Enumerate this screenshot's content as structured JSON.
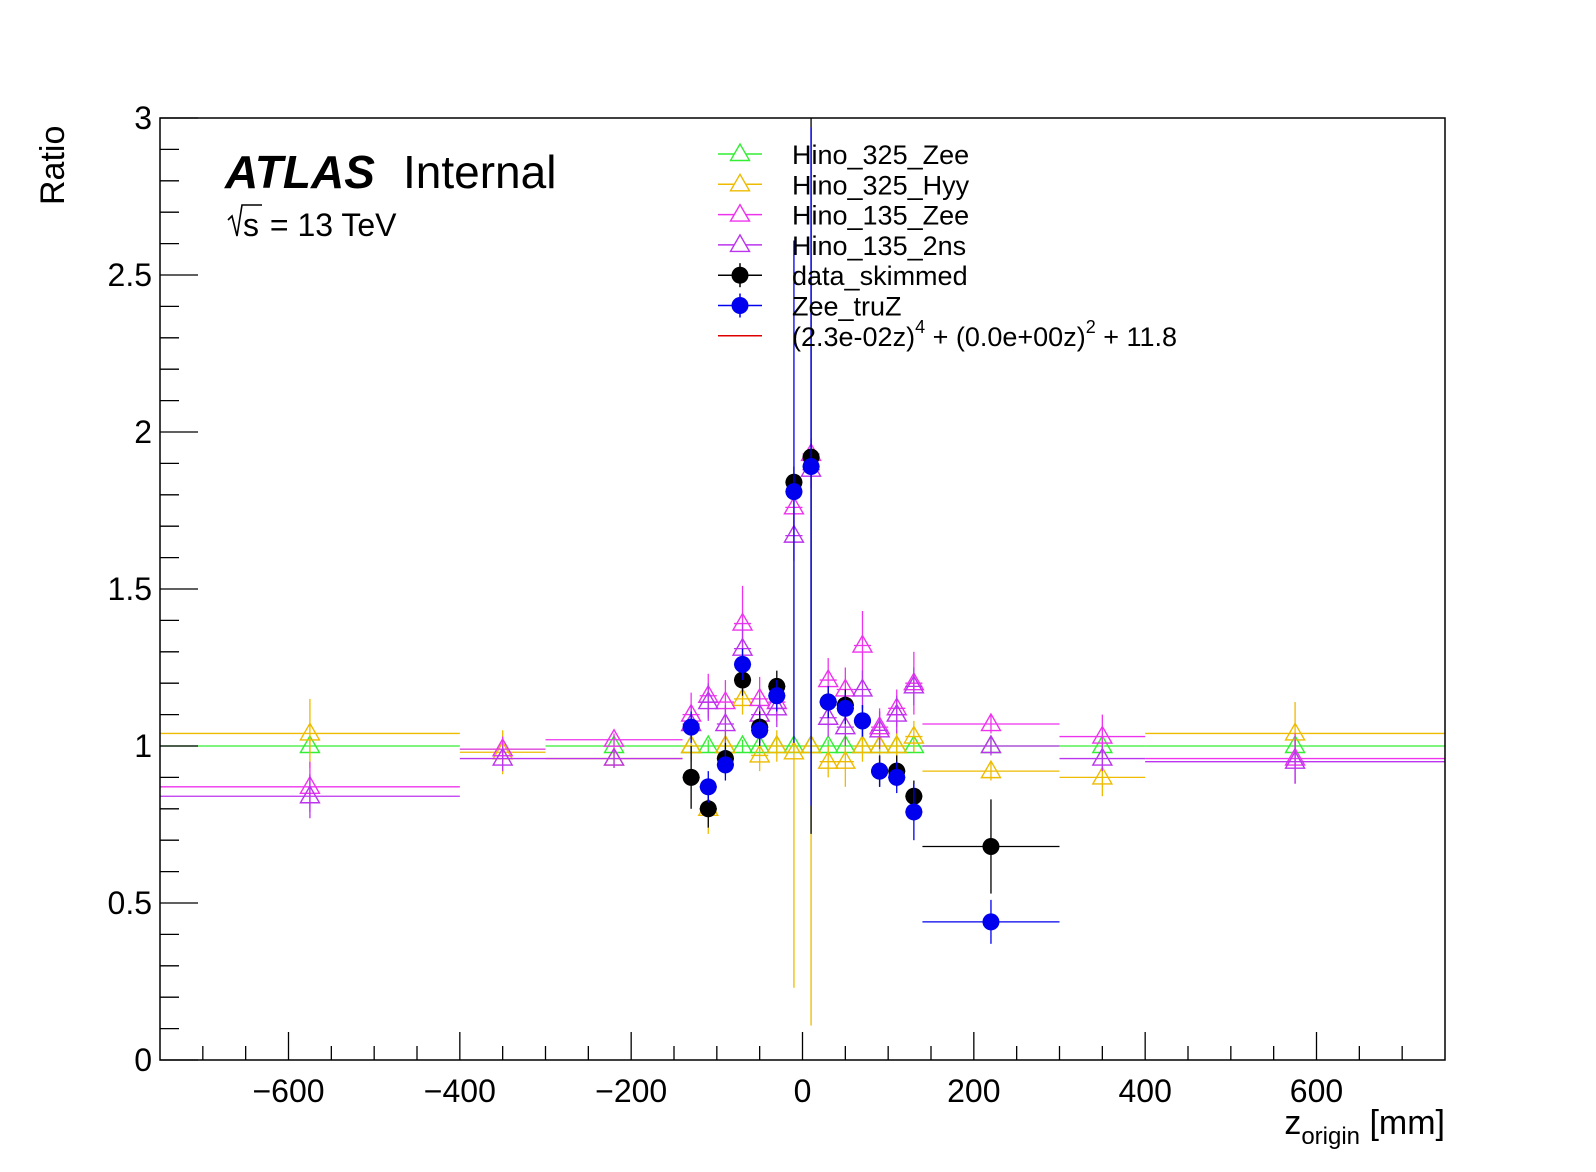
{
  "chart_data": {
    "type": "scatter",
    "title": "",
    "xlabel": "z",
    "xlabel_sub": "origin",
    "xlabel_unit": " [mm]",
    "ylabel": "Ratio",
    "xlim": [
      -750,
      750
    ],
    "ylim": [
      0,
      3
    ],
    "x_ticks": [
      -600,
      -400,
      -200,
      0,
      200,
      400,
      600
    ],
    "x_tick_labels": [
      "−600",
      "−400",
      "−200",
      "0",
      "200",
      "400",
      "600"
    ],
    "y_ticks": [
      0,
      0.5,
      1,
      1.5,
      2,
      2.5,
      3
    ],
    "y_tick_labels": [
      "0",
      "0.5",
      "1",
      "1.5",
      "2",
      "2.5",
      "3"
    ],
    "grid": false,
    "legend_position": "top-center",
    "atlas_label": {
      "bold": "ATLAS",
      "text": "Internal",
      "energy_prefix": "s",
      "energy": " = 13 TeV"
    },
    "series": [
      {
        "name": "Hino_325_Zee",
        "color": "#33ee33",
        "marker": "open-triangle",
        "points": [
          {
            "x": -575,
            "xlo": -750,
            "xhi": -400,
            "y": 1.0,
            "err": 0.02
          },
          {
            "x": -350,
            "xlo": -400,
            "xhi": -300,
            "y": 0.99,
            "err": 0.02
          },
          {
            "x": -220,
            "xlo": -300,
            "xhi": -140,
            "y": 1.0,
            "err": 0.02
          },
          {
            "x": -130,
            "xlo": -140,
            "xhi": -120,
            "y": 1.0,
            "err": 0.02
          },
          {
            "x": -110,
            "xlo": -120,
            "xhi": -100,
            "y": 1.0,
            "err": 0.02
          },
          {
            "x": -90,
            "xlo": -100,
            "xhi": -80,
            "y": 1.0,
            "err": 0.02
          },
          {
            "x": -70,
            "xlo": -80,
            "xhi": -60,
            "y": 1.0,
            "err": 0.02
          },
          {
            "x": -50,
            "xlo": -60,
            "xhi": -40,
            "y": 1.0,
            "err": 0.02
          },
          {
            "x": -30,
            "xlo": -40,
            "xhi": -20,
            "y": 1.0,
            "err": 0.02
          },
          {
            "x": -10,
            "xlo": -20,
            "xhi": 0,
            "y": 1.0,
            "err": 0.02
          },
          {
            "x": 10,
            "xlo": 0,
            "xhi": 20,
            "y": 1.0,
            "err": 0.02
          },
          {
            "x": 30,
            "xlo": 20,
            "xhi": 40,
            "y": 1.0,
            "err": 0.02
          },
          {
            "x": 50,
            "xlo": 40,
            "xhi": 60,
            "y": 1.0,
            "err": 0.02
          },
          {
            "x": 70,
            "xlo": 60,
            "xhi": 80,
            "y": 1.0,
            "err": 0.02
          },
          {
            "x": 90,
            "xlo": 80,
            "xhi": 100,
            "y": 1.0,
            "err": 0.02
          },
          {
            "x": 110,
            "xlo": 100,
            "xhi": 120,
            "y": 1.0,
            "err": 0.02
          },
          {
            "x": 130,
            "xlo": 120,
            "xhi": 140,
            "y": 1.0,
            "err": 0.02
          },
          {
            "x": 220,
            "xlo": 140,
            "xhi": 300,
            "y": 1.0,
            "err": 0.02
          },
          {
            "x": 350,
            "xlo": 300,
            "xhi": 400,
            "y": 1.0,
            "err": 0.02
          },
          {
            "x": 575,
            "xlo": 400,
            "xhi": 750,
            "y": 1.0,
            "err": 0.02
          }
        ]
      },
      {
        "name": "Hino_325_Hyy",
        "color": "#eebb00",
        "marker": "open-triangle",
        "points": [
          {
            "x": -575,
            "xlo": -750,
            "xhi": -400,
            "y": 1.04,
            "err": 0.11
          },
          {
            "x": -350,
            "xlo": -400,
            "xhi": -300,
            "y": 0.98,
            "err": 0.07
          },
          {
            "x": -220,
            "xlo": -300,
            "xhi": -140,
            "y": 0.96,
            "err": 0.03
          },
          {
            "x": -130,
            "xlo": -140,
            "xhi": -120,
            "y": 1.0,
            "err": 0.05
          },
          {
            "x": -110,
            "xlo": -120,
            "xhi": -100,
            "y": 0.8,
            "err": 0.08
          },
          {
            "x": -90,
            "xlo": -100,
            "xhi": -80,
            "y": 1.0,
            "err": 0.05
          },
          {
            "x": -70,
            "xlo": -80,
            "xhi": -60,
            "y": 1.15,
            "err": 0.05
          },
          {
            "x": -50,
            "xlo": -60,
            "xhi": -40,
            "y": 0.97,
            "err": 0.05
          },
          {
            "x": -30,
            "xlo": -40,
            "xhi": -20,
            "y": 1.0,
            "err": 0.05
          },
          {
            "x": -10,
            "xlo": -20,
            "xhi": 0,
            "y": 0.98,
            "err": 0.75
          },
          {
            "x": 10,
            "xlo": 0,
            "xhi": 20,
            "y": 1.0,
            "err": 0.89
          },
          {
            "x": 30,
            "xlo": 20,
            "xhi": 40,
            "y": 0.95,
            "err": 0.05
          },
          {
            "x": 50,
            "xlo": 40,
            "xhi": 60,
            "y": 0.95,
            "err": 0.08
          },
          {
            "x": 70,
            "xlo": 60,
            "xhi": 80,
            "y": 1.0,
            "err": 0.05
          },
          {
            "x": 90,
            "xlo": 80,
            "xhi": 100,
            "y": 1.0,
            "err": 0.05
          },
          {
            "x": 110,
            "xlo": 100,
            "xhi": 120,
            "y": 1.0,
            "err": 0.05
          },
          {
            "x": 130,
            "xlo": 120,
            "xhi": 140,
            "y": 1.03,
            "err": 0.05
          },
          {
            "x": 220,
            "xlo": 140,
            "xhi": 300,
            "y": 0.92,
            "err": 0.03
          },
          {
            "x": 350,
            "xlo": 300,
            "xhi": 400,
            "y": 0.9,
            "err": 0.06
          },
          {
            "x": 575,
            "xlo": 400,
            "xhi": 750,
            "y": 1.04,
            "err": 0.1
          }
        ]
      },
      {
        "name": "Hino_135_Zee",
        "color": "#ee33ee",
        "marker": "open-triangle",
        "points": [
          {
            "x": -575,
            "xlo": -750,
            "xhi": -400,
            "y": 0.87,
            "err": 0.08
          },
          {
            "x": -350,
            "xlo": -400,
            "xhi": -300,
            "y": 0.99,
            "err": 0.04
          },
          {
            "x": -220,
            "xlo": -300,
            "xhi": -140,
            "y": 1.02,
            "err": 0.02
          },
          {
            "x": -130,
            "xlo": -140,
            "xhi": -120,
            "y": 1.1,
            "err": 0.07
          },
          {
            "x": -110,
            "xlo": -120,
            "xhi": -100,
            "y": 1.16,
            "err": 0.07
          },
          {
            "x": -90,
            "xlo": -100,
            "xhi": -80,
            "y": 1.14,
            "err": 0.07
          },
          {
            "x": -70,
            "xlo": -80,
            "xhi": -60,
            "y": 1.39,
            "err": 0.12
          },
          {
            "x": -50,
            "xlo": -60,
            "xhi": -40,
            "y": 1.15,
            "err": 0.07
          },
          {
            "x": -30,
            "xlo": -40,
            "xhi": -20,
            "y": 1.14,
            "err": 0.06
          },
          {
            "x": -10,
            "xlo": -20,
            "xhi": 0,
            "y": 1.76,
            "err": 0.06
          },
          {
            "x": 10,
            "xlo": 0,
            "xhi": 20,
            "y": 1.93,
            "err": 0.05
          },
          {
            "x": 30,
            "xlo": 20,
            "xhi": 40,
            "y": 1.21,
            "err": 0.07
          },
          {
            "x": 50,
            "xlo": 40,
            "xhi": 60,
            "y": 1.18,
            "err": 0.07
          },
          {
            "x": 70,
            "xlo": 60,
            "xhi": 80,
            "y": 1.32,
            "err": 0.11
          },
          {
            "x": 90,
            "xlo": 80,
            "xhi": 100,
            "y": 1.06,
            "err": 0.06
          },
          {
            "x": 110,
            "xlo": 100,
            "xhi": 120,
            "y": 1.12,
            "err": 0.06
          },
          {
            "x": 130,
            "xlo": 120,
            "xhi": 140,
            "y": 1.2,
            "err": 0.1
          },
          {
            "x": 220,
            "xlo": 140,
            "xhi": 300,
            "y": 1.07,
            "err": 0.03
          },
          {
            "x": 350,
            "xlo": 300,
            "xhi": 400,
            "y": 1.03,
            "err": 0.07
          },
          {
            "x": 575,
            "xlo": 400,
            "xhi": 750,
            "y": 0.96,
            "err": 0.08
          }
        ]
      },
      {
        "name": "Hino_135_2ns",
        "color": "#bb33ee",
        "marker": "open-triangle",
        "points": [
          {
            "x": -575,
            "xlo": -750,
            "xhi": -400,
            "y": 0.84,
            "err": 0.07
          },
          {
            "x": -350,
            "xlo": -400,
            "xhi": -300,
            "y": 0.96,
            "err": 0.04
          },
          {
            "x": -220,
            "xlo": -300,
            "xhi": -140,
            "y": 0.96,
            "err": 0.03
          },
          {
            "x": -130,
            "xlo": -140,
            "xhi": -120,
            "y": 1.07,
            "err": 0.06
          },
          {
            "x": -110,
            "xlo": -120,
            "xhi": -100,
            "y": 1.14,
            "err": 0.06
          },
          {
            "x": -90,
            "xlo": -100,
            "xhi": -80,
            "y": 1.07,
            "err": 0.06
          },
          {
            "x": -70,
            "xlo": -80,
            "xhi": -60,
            "y": 1.31,
            "err": 0.08
          },
          {
            "x": -50,
            "xlo": -60,
            "xhi": -40,
            "y": 1.1,
            "err": 0.06
          },
          {
            "x": -30,
            "xlo": -40,
            "xhi": -20,
            "y": 1.12,
            "err": 0.06
          },
          {
            "x": -10,
            "xlo": -20,
            "xhi": 0,
            "y": 1.67,
            "err": 0.08
          },
          {
            "x": 10,
            "xlo": 0,
            "xhi": 20,
            "y": 1.88,
            "err": 0.06
          },
          {
            "x": 30,
            "xlo": 20,
            "xhi": 40,
            "y": 1.09,
            "err": 0.06
          },
          {
            "x": 50,
            "xlo": 40,
            "xhi": 60,
            "y": 1.06,
            "err": 0.06
          },
          {
            "x": 70,
            "xlo": 60,
            "xhi": 80,
            "y": 1.18,
            "err": 0.06
          },
          {
            "x": 90,
            "xlo": 80,
            "xhi": 100,
            "y": 1.05,
            "err": 0.06
          },
          {
            "x": 110,
            "xlo": 100,
            "xhi": 120,
            "y": 1.1,
            "err": 0.06
          },
          {
            "x": 130,
            "xlo": 120,
            "xhi": 140,
            "y": 1.19,
            "err": 0.06
          },
          {
            "x": 220,
            "xlo": 140,
            "xhi": 300,
            "y": 1.0,
            "err": 0.03
          },
          {
            "x": 350,
            "xlo": 300,
            "xhi": 400,
            "y": 0.96,
            "err": 0.04
          },
          {
            "x": 575,
            "xlo": 400,
            "xhi": 750,
            "y": 0.95,
            "err": 0.07
          }
        ]
      },
      {
        "name": "data_skimmed",
        "color": "#000000",
        "marker": "filled-circle",
        "points": [
          {
            "x": -130,
            "xlo": -140,
            "xhi": -120,
            "y": 0.9,
            "err": 0.1
          },
          {
            "x": -110,
            "xlo": -120,
            "xhi": -100,
            "y": 0.8,
            "err": 0.06
          },
          {
            "x": -90,
            "xlo": -100,
            "xhi": -80,
            "y": 0.96,
            "err": 0.05
          },
          {
            "x": -70,
            "xlo": -80,
            "xhi": -60,
            "y": 1.21,
            "err": 0.05
          },
          {
            "x": -50,
            "xlo": -60,
            "xhi": -40,
            "y": 1.06,
            "err": 0.05
          },
          {
            "x": -30,
            "xlo": -40,
            "xhi": -20,
            "y": 1.19,
            "err": 0.05
          },
          {
            "x": -10,
            "xlo": -20,
            "xhi": 0,
            "y": 1.84,
            "err": 0.05
          },
          {
            "x": 10,
            "xlo": 0,
            "xhi": 20,
            "y": 1.92,
            "err": 1.2
          },
          {
            "x": 30,
            "xlo": 20,
            "xhi": 40,
            "y": 1.14,
            "err": 0.05
          },
          {
            "x": 50,
            "xlo": 40,
            "xhi": 60,
            "y": 1.13,
            "err": 0.05
          },
          {
            "x": 70,
            "xlo": 60,
            "xhi": 80,
            "y": 1.08,
            "err": 0.05
          },
          {
            "x": 90,
            "xlo": 80,
            "xhi": 100,
            "y": 0.92,
            "err": 0.05
          },
          {
            "x": 110,
            "xlo": 100,
            "xhi": 120,
            "y": 0.92,
            "err": 0.05
          },
          {
            "x": 130,
            "xlo": 120,
            "xhi": 140,
            "y": 0.84,
            "err": 0.05
          },
          {
            "x": 220,
            "xlo": 140,
            "xhi": 300,
            "y": 0.68,
            "err": 0.15
          }
        ]
      },
      {
        "name": "Zee_truZ",
        "color": "#0000ee",
        "marker": "filled-circle",
        "points": [
          {
            "x": -130,
            "xlo": -140,
            "xhi": -120,
            "y": 1.06,
            "err": 0.05
          },
          {
            "x": -110,
            "xlo": -120,
            "xhi": -100,
            "y": 0.87,
            "err": 0.05
          },
          {
            "x": -90,
            "xlo": -100,
            "xhi": -80,
            "y": 0.94,
            "err": 0.05
          },
          {
            "x": -70,
            "xlo": -80,
            "xhi": -60,
            "y": 1.26,
            "err": 0.05
          },
          {
            "x": -50,
            "xlo": -60,
            "xhi": -40,
            "y": 1.05,
            "err": 0.05
          },
          {
            "x": -30,
            "xlo": -40,
            "xhi": -20,
            "y": 1.16,
            "err": 0.05
          },
          {
            "x": -10,
            "xlo": -20,
            "xhi": 0,
            "y": 1.81,
            "err": 0.8
          },
          {
            "x": 10,
            "xlo": 0,
            "xhi": 20,
            "y": 1.89,
            "err": 1.08
          },
          {
            "x": 30,
            "xlo": 20,
            "xhi": 40,
            "y": 1.14,
            "err": 0.05
          },
          {
            "x": 50,
            "xlo": 40,
            "xhi": 60,
            "y": 1.12,
            "err": 0.05
          },
          {
            "x": 70,
            "xlo": 60,
            "xhi": 80,
            "y": 1.08,
            "err": 0.05
          },
          {
            "x": 90,
            "xlo": 80,
            "xhi": 100,
            "y": 0.92,
            "err": 0.05
          },
          {
            "x": 110,
            "xlo": 100,
            "xhi": 120,
            "y": 0.9,
            "err": 0.05
          },
          {
            "x": 130,
            "xlo": 120,
            "xhi": 140,
            "y": 0.79,
            "err": 0.09
          },
          {
            "x": 220,
            "xlo": 140,
            "xhi": 300,
            "y": 0.44,
            "err": 0.07
          }
        ]
      },
      {
        "name": "(2.3e-02z)^4 + (0.0e+00z)^2 + 11.8",
        "legend_parts": [
          "(2.3e-02z)",
          "4",
          " + (0.0e+00z)",
          "2",
          " + 11.8"
        ],
        "color": "#dd0000",
        "marker": "line",
        "points": []
      }
    ]
  }
}
